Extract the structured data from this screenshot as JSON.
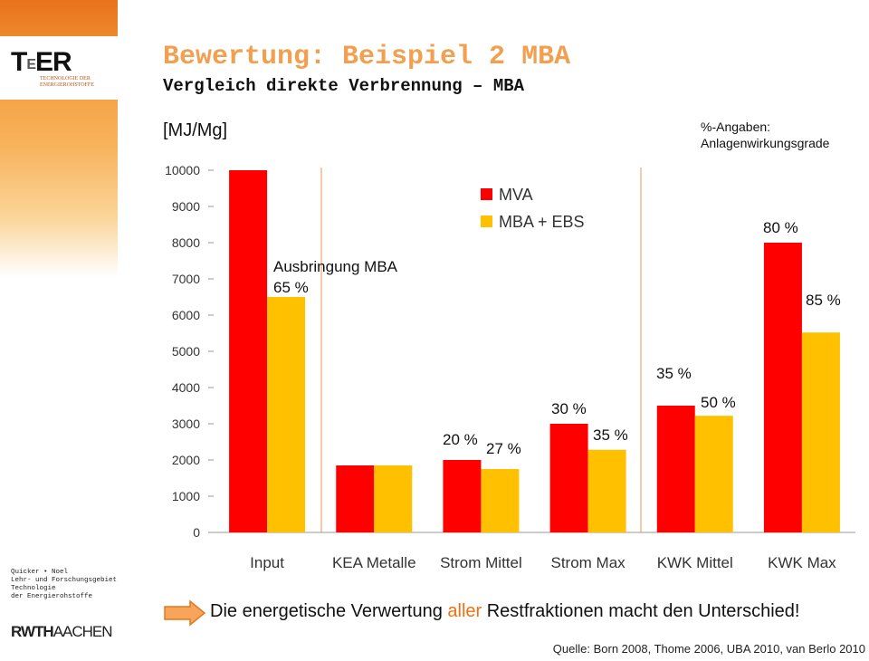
{
  "logo": {
    "parts": [
      "T",
      "E",
      "ER"
    ],
    "subtitle": "TECHNOLOGIE DER ENERGIEROHSTOFFE"
  },
  "sidebar": {
    "lines": [
      "Quicker • Noel",
      "Lehr- und Forschungsgebiet",
      "Technologie",
      "der Energierohstoffe"
    ]
  },
  "university": {
    "parts": [
      "RWTH",
      "AACHEN"
    ]
  },
  "header": {
    "title": "Bewertung: Beispiel 2 MBA",
    "subtitle": "Vergleich direkte Verbrennung – MBA"
  },
  "chart_data": {
    "type": "bar",
    "y_label": "[MJ/Mg]",
    "note": "%-Angaben: Anlagenwirkungsgrade",
    "categories": [
      "Input",
      "KEA Metalle",
      "Strom Mittel",
      "Strom Max",
      "KWK Mittel",
      "KWK Max"
    ],
    "series": [
      {
        "name": "MVA",
        "color": "#ff0000",
        "values": [
          10000,
          1850,
          2000,
          3000,
          3500,
          8000
        ]
      },
      {
        "name": "MBA + EBS",
        "color": "#ffc000",
        "values": [
          6500,
          1850,
          1750,
          2280,
          3220,
          5520
        ]
      }
    ],
    "ylim": [
      0,
      10000
    ],
    "yticks": [
      0,
      1000,
      2000,
      3000,
      4000,
      5000,
      6000,
      7000,
      8000,
      9000,
      10000
    ],
    "grid": false,
    "legend": "top",
    "annotations": [
      "Ausbringung MBA",
      "65 %",
      "20 %",
      "27 %",
      "30 %",
      "35 %",
      "35 %",
      "50 %",
      "80 %",
      "85 %"
    ]
  },
  "footer": {
    "message": [
      "Die energetische Verwertung ",
      "aller",
      " Restfraktionen macht den Unterschied!"
    ],
    "source": "Quelle: Born 2008, Thome 2006, UBA 2010, van Berlo 2010"
  }
}
